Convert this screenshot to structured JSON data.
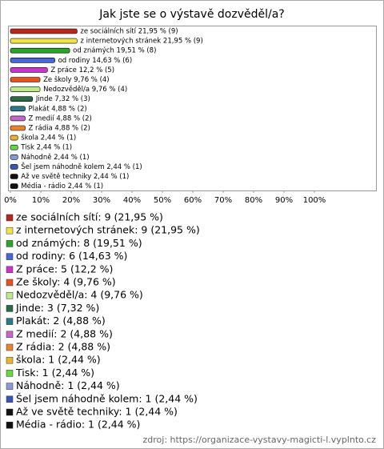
{
  "chart_data": {
    "type": "bar",
    "orientation": "horizontal",
    "title": "Jak jste se o výstavě dozvěděl/a?",
    "categories": [
      "ze sociálních sítí",
      "z internetových stránek",
      "od známých",
      "od rodiny",
      "Z práce",
      "Ze školy",
      "Nedozvěděl/a",
      "Jinde",
      "Plakát",
      "Z medií",
      "Z rádia",
      "škola",
      "Tisk",
      "Náhodně",
      "Šel jsem náhodně kolem",
      "Až ve světě techniky",
      "Média - rádio"
    ],
    "values": [
      21.95,
      21.95,
      19.51,
      14.63,
      12.2,
      9.76,
      9.76,
      7.32,
      4.88,
      4.88,
      4.88,
      2.44,
      2.44,
      2.44,
      2.44,
      2.44,
      2.44
    ],
    "counts": [
      9,
      9,
      8,
      6,
      5,
      4,
      4,
      3,
      2,
      2,
      2,
      1,
      1,
      1,
      1,
      1,
      1
    ],
    "value_labels": [
      "ze sociálních sítí 21,95 % (9)",
      "z internetových stránek 21,95 % (9)",
      "od známých 19,51 % (8)",
      "od rodiny 14,63 % (6)",
      "Z práce 12,2 % (5)",
      "Ze školy 9,76 % (4)",
      "Nedozvěděl/a 9,76 % (4)",
      "Jinde 7,32 % (3)",
      "Plakát 4,88 % (2)",
      "Z medií 4,88 % (2)",
      "Z rádia 4,88 % (2)",
      "škola 2,44 % (1)",
      "Tisk 2,44 % (1)",
      "Náhodně 2,44 % (1)",
      "Šel jsem náhodně kolem 2,44 % (1)",
      "Až ve světě techniky 2,44 % (1)",
      "Média - rádio 2,44 % (1)"
    ],
    "legend_labels": [
      "ze sociálních sítí: 9 (21,95 %)",
      "z internetových stránek: 9 (21,95 %)",
      "od známých: 8 (19,51 %)",
      "od rodiny: 6 (14,63 %)",
      "Z práce: 5 (12,2 %)",
      "Ze školy: 4 (9,76 %)",
      "Nedozvěděl/a: 4 (9,76 %)",
      "Jinde: 3 (7,32 %)",
      "Plakát: 2 (4,88 %)",
      "Z medií: 2 (4,88 %)",
      "Z rádia: 2 (4,88 %)",
      "škola: 1 (2,44 %)",
      "Tisk: 1 (2,44 %)",
      "Náhodně: 1 (2,44 %)",
      "Šel jsem náhodně kolem: 1 (2,44 %)",
      "Až ve světě techniky: 1 (2,44 %)",
      "Média - rádio: 1 (2,44 %)"
    ],
    "colors": [
      "#b5281e",
      "#f2e24a",
      "#2aa52a",
      "#4766d8",
      "#cc33cc",
      "#e8521f",
      "#bde98a",
      "#2a6a44",
      "#2a7a88",
      "#c466c4",
      "#e8822f",
      "#e8b52f",
      "#66d644",
      "#8a9ad8",
      "#3456b8",
      "#111111",
      "#111111"
    ],
    "xlim": [
      0,
      100
    ],
    "xticks": [
      {
        "value": 0,
        "label": "0%"
      },
      {
        "value": 10,
        "label": "10%"
      },
      {
        "value": 20,
        "label": "20%"
      },
      {
        "value": 30,
        "label": "30%"
      },
      {
        "value": 40,
        "label": "40%"
      },
      {
        "value": 50,
        "label": "50%"
      },
      {
        "value": 60,
        "label": "60%"
      },
      {
        "value": 70,
        "label": "70%"
      },
      {
        "value": 80,
        "label": "80%"
      },
      {
        "value": 90,
        "label": "90%"
      },
      {
        "value": 100,
        "label": "100%"
      }
    ],
    "source": "zdroj: https://organizace-vystavy-magicti-l.vyplnto.cz"
  }
}
